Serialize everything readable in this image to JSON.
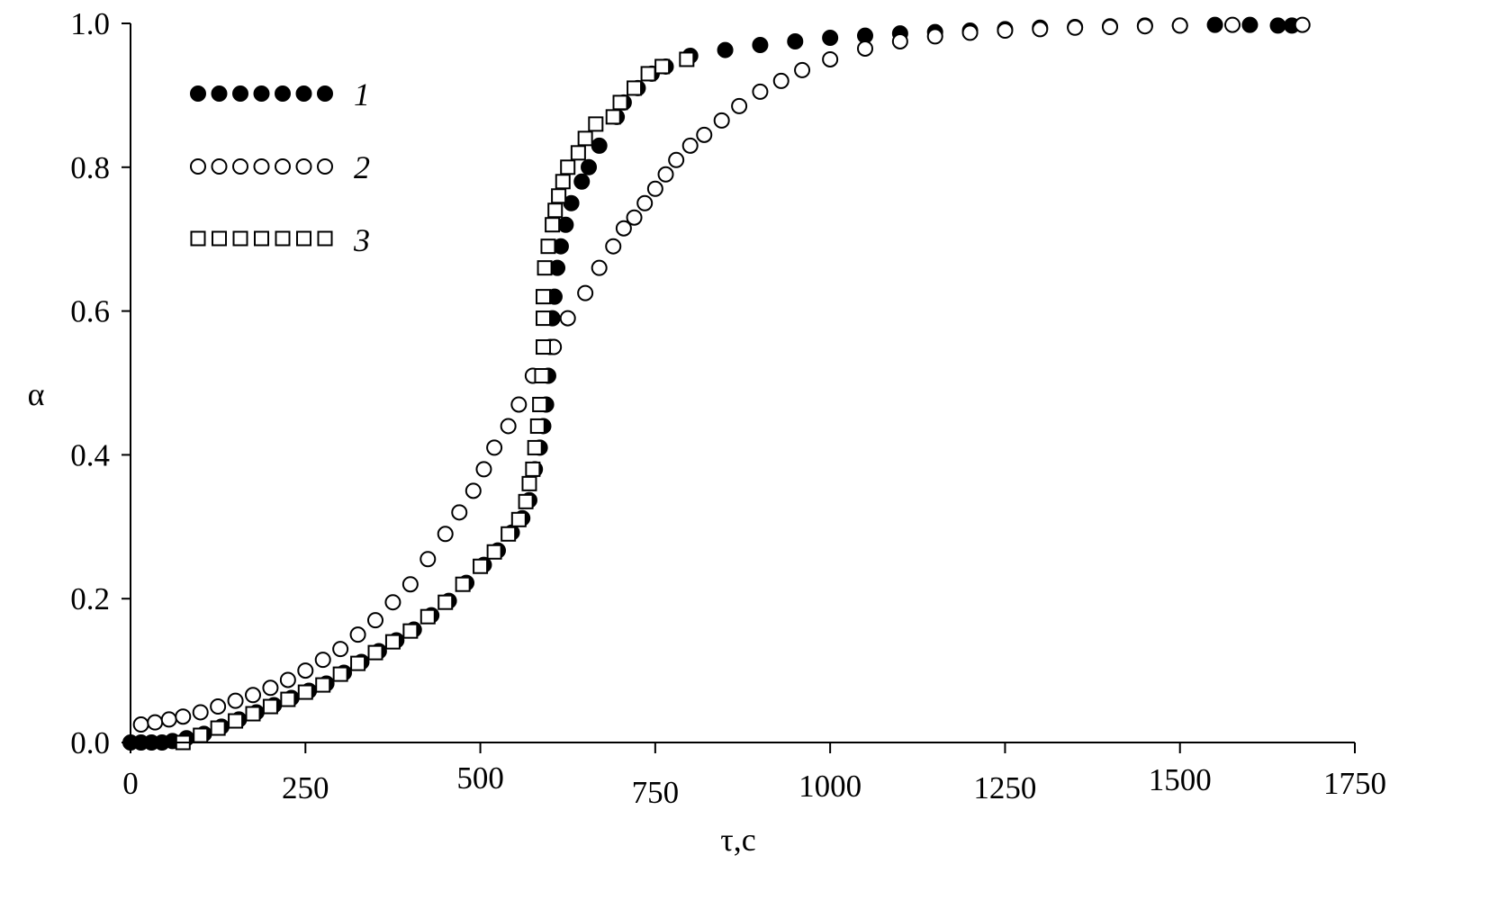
{
  "chart_data": {
    "type": "scatter",
    "title": "",
    "xlabel": "τ,c",
    "ylabel": "α",
    "xlim": [
      0,
      1750
    ],
    "ylim": [
      0,
      1.0
    ],
    "grid": false,
    "legend_placement": "top-left",
    "xticks": [
      "0",
      "250",
      "500",
      "750",
      "1000",
      "1250",
      "1500",
      "1750"
    ],
    "xtick_values": [
      0,
      250,
      500,
      750,
      1000,
      1250,
      1500,
      1750
    ],
    "yticks": [
      "0.0",
      "0.2",
      "0.4",
      "0.6",
      "0.8",
      "1.0"
    ],
    "ytick_values": [
      0,
      0.2,
      0.4,
      0.6,
      0.8,
      1.0
    ],
    "series": [
      {
        "name": "1",
        "marker": "filled-circle",
        "color": "#000000",
        "x": [
          0,
          15,
          30,
          45,
          60,
          80,
          105,
          130,
          155,
          180,
          205,
          230,
          255,
          280,
          305,
          330,
          355,
          380,
          405,
          430,
          455,
          480,
          505,
          525,
          545,
          560,
          570,
          578,
          585,
          590,
          594,
          597,
          600,
          603,
          606,
          610,
          615,
          622,
          630,
          645,
          655,
          670,
          695,
          705,
          725,
          745,
          765,
          800,
          850,
          900,
          950,
          1000,
          1050,
          1100,
          1150,
          1200,
          1250,
          1300,
          1350,
          1400,
          1450,
          1500,
          1550,
          1600,
          1640,
          1660
        ],
        "y": [
          0,
          0,
          0,
          0,
          0.002,
          0.006,
          0.012,
          0.022,
          0.032,
          0.042,
          0.052,
          0.062,
          0.072,
          0.082,
          0.097,
          0.112,
          0.127,
          0.142,
          0.157,
          0.177,
          0.197,
          0.222,
          0.247,
          0.267,
          0.292,
          0.312,
          0.337,
          0.38,
          0.41,
          0.44,
          0.47,
          0.51,
          0.55,
          0.59,
          0.62,
          0.66,
          0.69,
          0.72,
          0.75,
          0.78,
          0.8,
          0.83,
          0.87,
          0.89,
          0.91,
          0.93,
          0.94,
          0.955,
          0.963,
          0.97,
          0.975,
          0.98,
          0.983,
          0.986,
          0.988,
          0.99,
          0.992,
          0.994,
          0.995,
          0.996,
          0.997,
          0.997,
          0.998,
          0.998,
          0.997,
          0.997
        ]
      },
      {
        "name": "2",
        "marker": "open-circle",
        "color": "#000000",
        "x": [
          15,
          35,
          55,
          75,
          100,
          125,
          150,
          175,
          200,
          225,
          250,
          275,
          300,
          325,
          350,
          375,
          400,
          425,
          450,
          470,
          490,
          505,
          520,
          540,
          555,
          575,
          605,
          625,
          650,
          670,
          690,
          705,
          720,
          735,
          750,
          765,
          780,
          800,
          820,
          845,
          870,
          900,
          930,
          960,
          1000,
          1050,
          1100,
          1150,
          1200,
          1250,
          1300,
          1350,
          1400,
          1450,
          1500,
          1575,
          1675
        ],
        "y": [
          0.025,
          0.028,
          0.032,
          0.036,
          0.042,
          0.05,
          0.058,
          0.066,
          0.076,
          0.087,
          0.1,
          0.115,
          0.13,
          0.15,
          0.17,
          0.195,
          0.22,
          0.255,
          0.29,
          0.32,
          0.35,
          0.38,
          0.41,
          0.44,
          0.47,
          0.51,
          0.55,
          0.59,
          0.625,
          0.66,
          0.69,
          0.715,
          0.73,
          0.75,
          0.77,
          0.79,
          0.81,
          0.83,
          0.845,
          0.865,
          0.885,
          0.905,
          0.92,
          0.935,
          0.95,
          0.965,
          0.975,
          0.982,
          0.987,
          0.99,
          0.992,
          0.994,
          0.995,
          0.996,
          0.997,
          0.998,
          0.998
        ]
      },
      {
        "name": "3",
        "marker": "open-square",
        "color": "#000000",
        "x": [
          75,
          100,
          125,
          150,
          175,
          200,
          225,
          250,
          275,
          300,
          325,
          350,
          375,
          400,
          425,
          450,
          475,
          500,
          520,
          540,
          555,
          565,
          570,
          575,
          578,
          582,
          585,
          588,
          590,
          590,
          590,
          592,
          597,
          603,
          607,
          612,
          618,
          625,
          640,
          650,
          665,
          690,
          700,
          720,
          740,
          760,
          795
        ],
        "y": [
          0,
          0.01,
          0.02,
          0.03,
          0.04,
          0.05,
          0.06,
          0.07,
          0.08,
          0.095,
          0.11,
          0.125,
          0.14,
          0.155,
          0.175,
          0.195,
          0.22,
          0.245,
          0.265,
          0.29,
          0.31,
          0.335,
          0.36,
          0.38,
          0.41,
          0.44,
          0.47,
          0.51,
          0.55,
          0.59,
          0.62,
          0.66,
          0.69,
          0.72,
          0.74,
          0.76,
          0.78,
          0.8,
          0.82,
          0.84,
          0.86,
          0.87,
          0.89,
          0.91,
          0.93,
          0.94,
          0.95
        ]
      }
    ]
  }
}
